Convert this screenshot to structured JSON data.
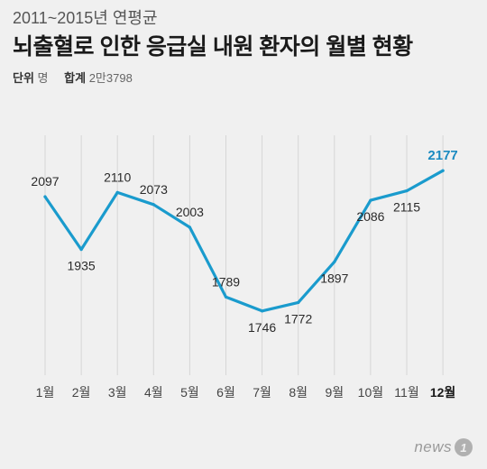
{
  "header": {
    "subtitle": "2011~2015년 연평균",
    "title": "뇌출혈로 인한 응급실 내원 환자의 월별 현황",
    "unit_label": "단위",
    "unit_value": "명",
    "total_label": "합계",
    "total_value": "2만3798"
  },
  "chart_data": {
    "type": "line",
    "title": "뇌출혈로 인한 응급실 내원 환자의 월별 현황",
    "categories": [
      "1월",
      "2월",
      "3월",
      "4월",
      "5월",
      "6월",
      "7월",
      "8월",
      "9월",
      "10월",
      "11월",
      "12월"
    ],
    "series": [
      {
        "values": [
          2097,
          1935,
          2110,
          2073,
          2003,
          1789,
          1746,
          1772,
          1897,
          2086,
          2115,
          2177
        ]
      }
    ],
    "data_labels": [
      "2097",
      "1935",
      "2110",
      "2073",
      "2003",
      "1789",
      "1746",
      "1772",
      "1897",
      "2086",
      "2115",
      "2177"
    ],
    "highlight_index": 11,
    "ylim": [
      1560,
      2280
    ],
    "grid": "vertical",
    "line_color": "#1a9bcd",
    "label_color": "#2a2a2a",
    "highlight_color": "#1a8ac0"
  },
  "logo": {
    "text": "news",
    "mark": "1"
  }
}
